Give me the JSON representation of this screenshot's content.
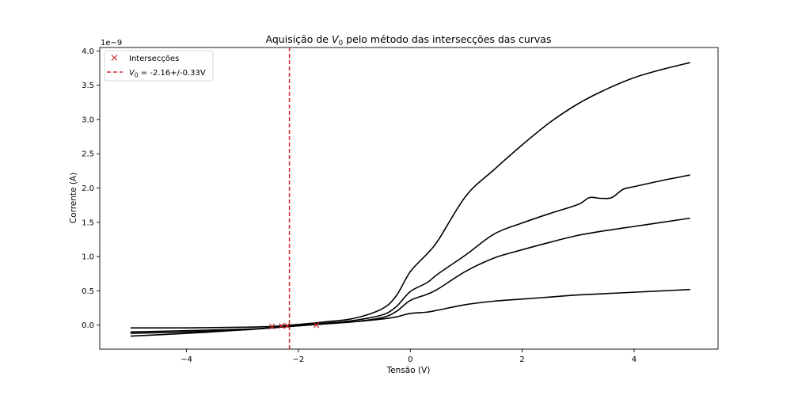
{
  "chart_data": {
    "type": "line",
    "title_prefix": "Aquisição de ",
    "title_var": "V",
    "title_sub": "0",
    "title_suffix": " pelo método das intersecções das curvas",
    "xlabel": "Tensão (V)",
    "ylabel": "Corrente (A)",
    "y_offset_label": "1e−9",
    "xlim": [
      -5.55,
      5.5
    ],
    "ylim": [
      -0.35,
      4.05
    ],
    "xticks": [
      -4,
      -2,
      0,
      2,
      4
    ],
    "xtick_labels": [
      "−4",
      "−2",
      "0",
      "2",
      "4"
    ],
    "yticks": [
      0.0,
      0.5,
      1.0,
      1.5,
      2.0,
      2.5,
      3.0,
      3.5,
      4.0
    ],
    "ytick_labels": [
      "0.0",
      "0.5",
      "1.0",
      "1.5",
      "2.0",
      "2.5",
      "3.0",
      "3.5",
      "4.0"
    ],
    "grid": false,
    "legend_position": "top-left",
    "legend": {
      "markers_label": "Intersecções",
      "line_label_var": "V",
      "line_label_sub": "0",
      "line_label_suffix": " = -2.16+/-0.33V"
    },
    "vline_x": -2.16,
    "intersections": [
      {
        "x": -2.47,
        "y": -0.02
      },
      {
        "x": -2.3,
        "y": -0.01
      },
      {
        "x": -2.2,
        "y": -0.01
      },
      {
        "x": -1.68,
        "y": 0.0
      }
    ],
    "series": [
      {
        "points": [
          [
            -5,
            -0.16
          ],
          [
            -4,
            -0.12
          ],
          [
            -3,
            -0.07
          ],
          [
            -2.5,
            -0.04
          ],
          [
            -2,
            -0.01
          ],
          [
            -1.5,
            0.02
          ],
          [
            -1,
            0.05
          ],
          [
            -0.5,
            0.09
          ],
          [
            -0.25,
            0.12
          ],
          [
            0,
            0.17
          ],
          [
            0.3,
            0.19
          ],
          [
            0.5,
            0.22
          ],
          [
            1,
            0.3
          ],
          [
            1.5,
            0.35
          ],
          [
            2,
            0.38
          ],
          [
            2.5,
            0.41
          ],
          [
            3,
            0.44
          ],
          [
            3.5,
            0.46
          ],
          [
            4,
            0.48
          ],
          [
            4.5,
            0.5
          ],
          [
            5,
            0.52
          ]
        ]
      },
      {
        "points": [
          [
            -5,
            -0.12
          ],
          [
            -4,
            -0.1
          ],
          [
            -3,
            -0.07
          ],
          [
            -2.5,
            -0.04
          ],
          [
            -2,
            -0.01
          ],
          [
            -1.5,
            0.02
          ],
          [
            -1,
            0.05
          ],
          [
            -0.5,
            0.11
          ],
          [
            -0.25,
            0.2
          ],
          [
            0,
            0.36
          ],
          [
            0.3,
            0.45
          ],
          [
            0.5,
            0.53
          ],
          [
            1,
            0.79
          ],
          [
            1.5,
            0.98
          ],
          [
            2,
            1.1
          ],
          [
            2.5,
            1.21
          ],
          [
            3,
            1.31
          ],
          [
            3.5,
            1.38
          ],
          [
            4,
            1.44
          ],
          [
            4.5,
            1.5
          ],
          [
            5,
            1.56
          ]
        ]
      },
      {
        "points": [
          [
            -5,
            -0.1
          ],
          [
            -4,
            -0.08
          ],
          [
            -3,
            -0.06
          ],
          [
            -2.5,
            -0.04
          ],
          [
            -2,
            0.0
          ],
          [
            -1.5,
            0.03
          ],
          [
            -1,
            0.07
          ],
          [
            -0.5,
            0.15
          ],
          [
            -0.25,
            0.27
          ],
          [
            0,
            0.49
          ],
          [
            0.3,
            0.62
          ],
          [
            0.5,
            0.75
          ],
          [
            1,
            1.03
          ],
          [
            1.5,
            1.33
          ],
          [
            2,
            1.49
          ],
          [
            2.5,
            1.63
          ],
          [
            3,
            1.76
          ],
          [
            3.2,
            1.86
          ],
          [
            3.4,
            1.85
          ],
          [
            3.6,
            1.86
          ],
          [
            3.8,
            1.98
          ],
          [
            4,
            2.02
          ],
          [
            4.5,
            2.11
          ],
          [
            5,
            2.19
          ]
        ]
      },
      {
        "points": [
          [
            -5,
            -0.04
          ],
          [
            -4,
            -0.04
          ],
          [
            -3,
            -0.03
          ],
          [
            -2.5,
            -0.02
          ],
          [
            -2,
            0.01
          ],
          [
            -1.5,
            0.05
          ],
          [
            -1,
            0.1
          ],
          [
            -0.5,
            0.24
          ],
          [
            -0.25,
            0.43
          ],
          [
            0,
            0.78
          ],
          [
            0.3,
            1.04
          ],
          [
            0.5,
            1.24
          ],
          [
            1,
            1.89
          ],
          [
            1.5,
            2.27
          ],
          [
            2,
            2.63
          ],
          [
            2.5,
            2.96
          ],
          [
            3,
            3.23
          ],
          [
            3.5,
            3.44
          ],
          [
            4,
            3.61
          ],
          [
            4.5,
            3.73
          ],
          [
            5,
            3.83
          ]
        ]
      }
    ]
  },
  "colors": {
    "series": "#000000",
    "vline": "#d62728",
    "marker": "#d62728",
    "legend_border": "#cccccc"
  }
}
